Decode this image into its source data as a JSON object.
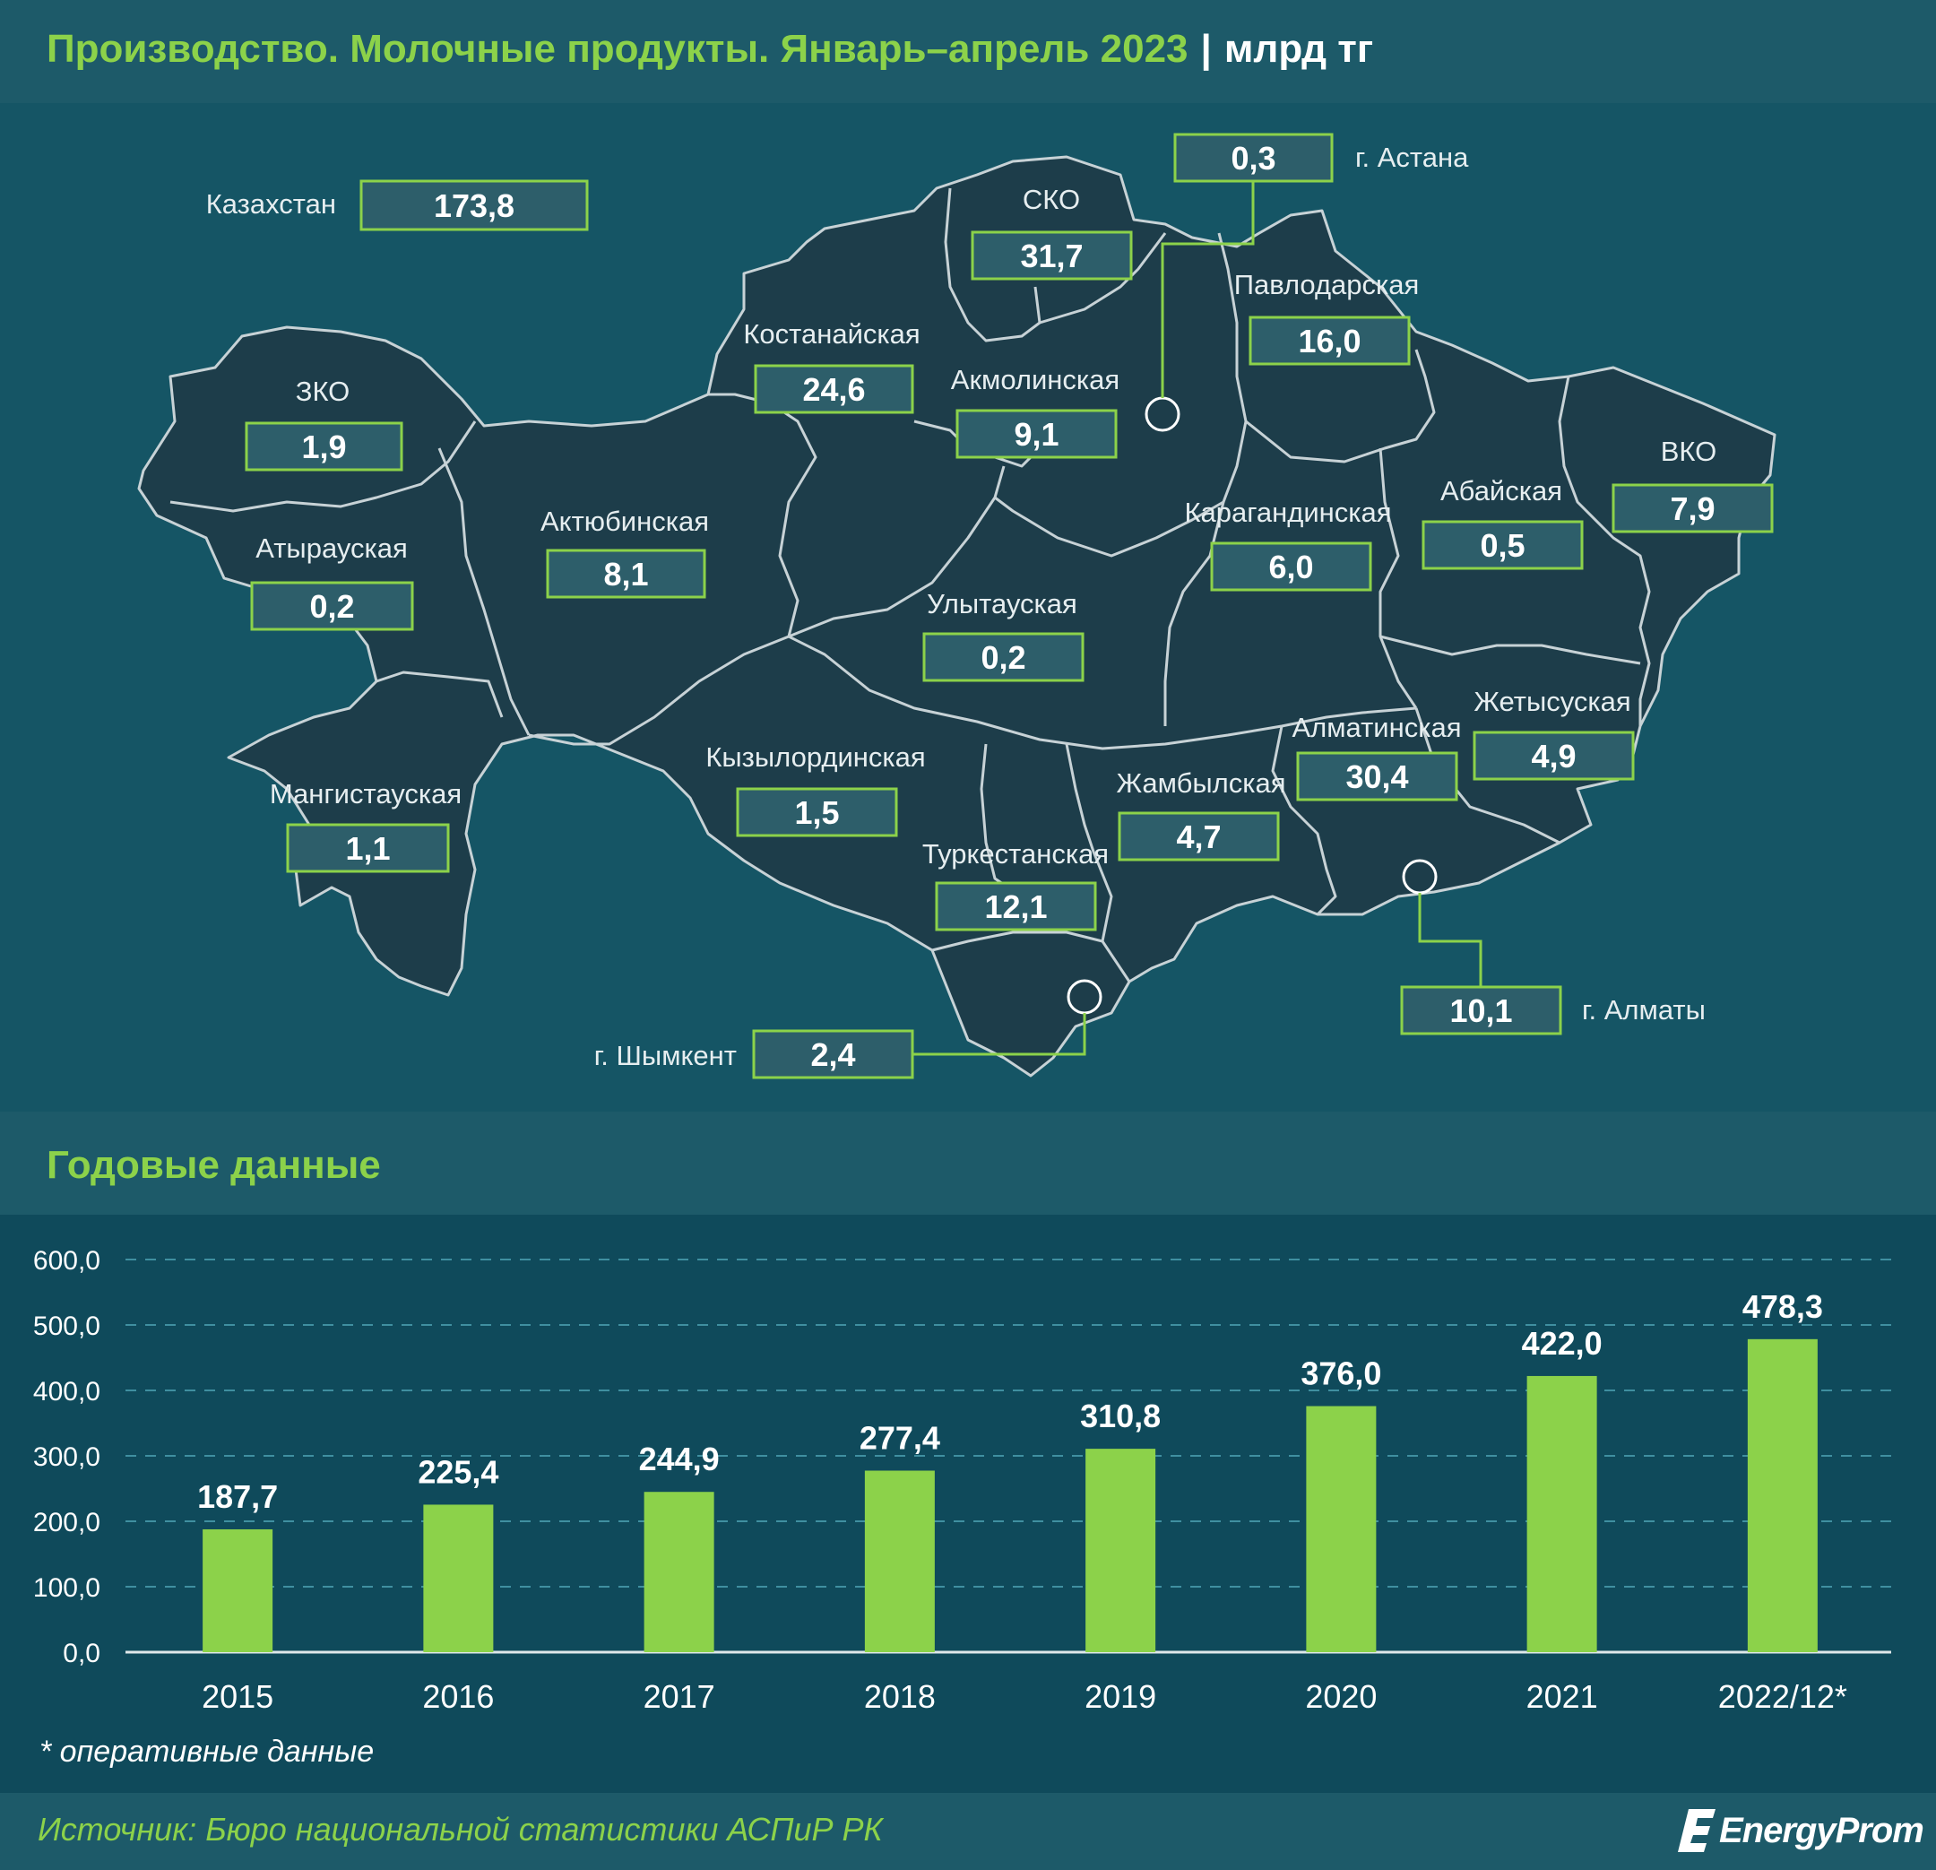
{
  "header": {
    "title": "Производство. Молочные продукты. Январь–апрель 2023",
    "separator": "|",
    "unit": "млрд тг"
  },
  "map": {
    "country": {
      "name": "Казахстан",
      "value": "173,8"
    },
    "regions": [
      {
        "name": "ЗКО",
        "value": "1,9"
      },
      {
        "name": "Атырауская",
        "value": "0,2"
      },
      {
        "name": "Мангистауская",
        "value": "1,1"
      },
      {
        "name": "Актюбинская",
        "value": "8,1"
      },
      {
        "name": "Костанайская",
        "value": "24,6"
      },
      {
        "name": "СКО",
        "value": "31,7"
      },
      {
        "name": "Акмолинская",
        "value": "9,1"
      },
      {
        "name": "Павлодарская",
        "value": "16,0"
      },
      {
        "name": "Карагандинская",
        "value": "6,0"
      },
      {
        "name": "Улытауская",
        "value": "0,2"
      },
      {
        "name": "Абайская",
        "value": "0,5"
      },
      {
        "name": "ВКО",
        "value": "7,9"
      },
      {
        "name": "Кызылординская",
        "value": "1,5"
      },
      {
        "name": "Туркестанская",
        "value": "12,1"
      },
      {
        "name": "Жамбылская",
        "value": "4,7"
      },
      {
        "name": "Алматинская",
        "value": "30,4"
      },
      {
        "name": "Жетысуская",
        "value": "4,9"
      }
    ],
    "cities": [
      {
        "name": "г. Астана",
        "value": "0,3"
      },
      {
        "name": "г. Алматы",
        "value": "10,1"
      },
      {
        "name": "г. Шымкент",
        "value": "2,4"
      }
    ]
  },
  "annual": {
    "title": "Годовые данные",
    "footnote": "* оперативные данные"
  },
  "chart_data": {
    "type": "bar",
    "categories": [
      "2015",
      "2016",
      "2017",
      "2018",
      "2019",
      "2020",
      "2021",
      "2022/12*"
    ],
    "values": [
      187.7,
      225.4,
      244.9,
      277.4,
      310.8,
      376.0,
      422.0,
      478.3
    ],
    "value_labels": [
      "187,7",
      "225,4",
      "244,9",
      "277,4",
      "310,8",
      "376,0",
      "422,0",
      "478,3"
    ],
    "y_ticks": [
      "0,0",
      "100,0",
      "200,0",
      "300,0",
      "400,0",
      "500,0",
      "600,0"
    ],
    "ylim": [
      0,
      600
    ],
    "grid": true,
    "bar_color": "#8cd24a"
  },
  "footer": {
    "source": "Источник: Бюро национальной статистики АСПиР РК",
    "logo": "EnergyProm"
  }
}
